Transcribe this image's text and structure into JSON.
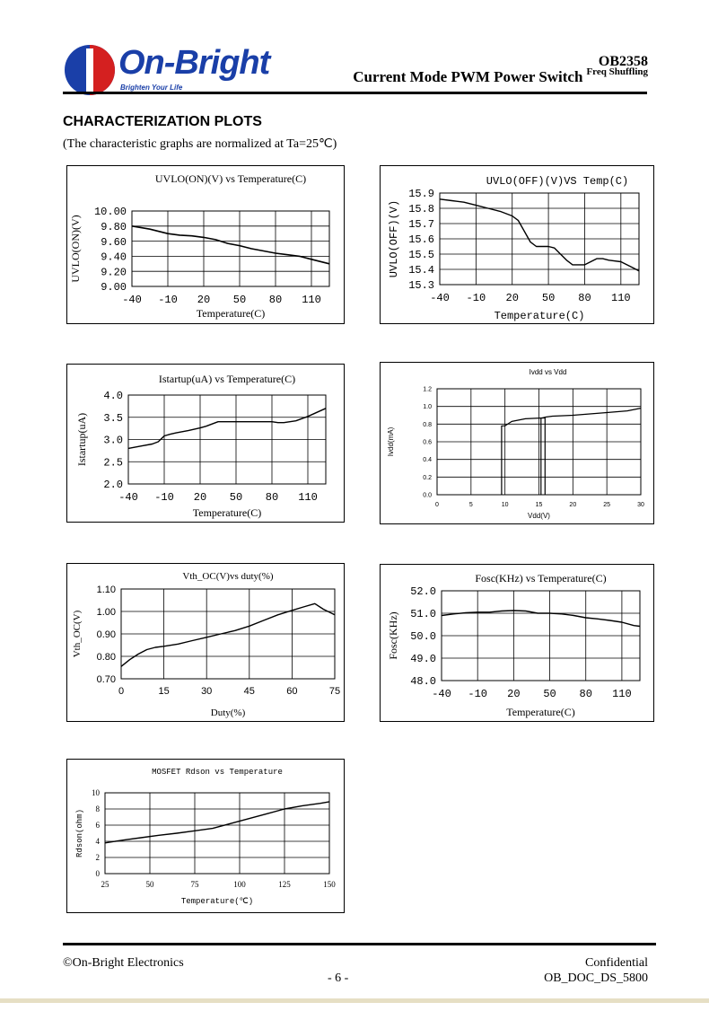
{
  "header": {
    "logo_text": "On-Bright",
    "logo_tagline": "Brighten Your Life",
    "part_number": "OB2358",
    "title": "Current Mode PWM Power Switch",
    "subtitle": "Freq Shuffling",
    "colors": {
      "brand_blue": "#1a3fa8",
      "brand_red": "#d42020"
    }
  },
  "section": {
    "title": "CHARACTERIZATION PLOTS",
    "note": "(The characteristic graphs are normalized at Ta=25℃)"
  },
  "chart_data": [
    {
      "id": "uvlo_on",
      "type": "line",
      "title": "UVLO(ON)(V) vs Temperature(C)",
      "xlabel": "Temperature(C)",
      "ylabel": "UVLO(ON)(V)",
      "xlim": [
        -40,
        125
      ],
      "ylim": [
        9.0,
        10.0
      ],
      "xticks": [
        -40,
        -10,
        20,
        50,
        80,
        110
      ],
      "yticks": [
        9.0,
        9.2,
        9.4,
        9.6,
        9.8,
        10.0
      ],
      "xtick_labels": [
        "-40",
        "-10",
        "20",
        "50",
        "80",
        "110"
      ],
      "ytick_labels": [
        "9.00",
        "9.20",
        "9.40",
        "9.60",
        "9.80",
        "10.00"
      ],
      "grid": true,
      "x": [
        -40,
        -25,
        -10,
        0,
        10,
        20,
        30,
        40,
        50,
        60,
        70,
        80,
        90,
        100,
        110,
        125
      ],
      "y": [
        9.8,
        9.76,
        9.7,
        9.68,
        9.67,
        9.65,
        9.62,
        9.57,
        9.54,
        9.5,
        9.47,
        9.44,
        9.42,
        9.4,
        9.36,
        9.3
      ]
    },
    {
      "id": "uvlo_off",
      "type": "line",
      "title": "UVLO(OFF)(V)VS Temp(C)",
      "xlabel": "Temperature(C)",
      "ylabel": "UVLO(OFF)(V)",
      "xlim": [
        -40,
        125
      ],
      "ylim": [
        15.3,
        15.9
      ],
      "xticks": [
        -40,
        -10,
        20,
        50,
        80,
        110
      ],
      "yticks": [
        15.3,
        15.4,
        15.5,
        15.6,
        15.7,
        15.8,
        15.9
      ],
      "xtick_labels": [
        "-40",
        "-10",
        "20",
        "50",
        "80",
        "110"
      ],
      "ytick_labels": [
        "15.3",
        "15.4",
        "15.5",
        "15.6",
        "15.7",
        "15.8",
        "15.9"
      ],
      "grid": true,
      "x": [
        -40,
        -30,
        -20,
        -10,
        0,
        10,
        20,
        25,
        30,
        35,
        40,
        50,
        55,
        60,
        65,
        70,
        75,
        80,
        85,
        90,
        95,
        100,
        110,
        120,
        125
      ],
      "y": [
        15.86,
        15.85,
        15.84,
        15.82,
        15.8,
        15.78,
        15.75,
        15.72,
        15.65,
        15.58,
        15.55,
        15.55,
        15.54,
        15.5,
        15.46,
        15.43,
        15.43,
        15.43,
        15.45,
        15.47,
        15.47,
        15.46,
        15.45,
        15.41,
        15.39
      ]
    },
    {
      "id": "istartup",
      "type": "line",
      "title": "Istartup(uA) vs Temperature(C)",
      "xlabel": "Temperature(C)",
      "ylabel": "Istartup(uA)",
      "xlim": [
        -40,
        125
      ],
      "ylim": [
        2.0,
        4.0
      ],
      "xticks": [
        -40,
        -10,
        20,
        50,
        80,
        110
      ],
      "yticks": [
        2.0,
        2.5,
        3.0,
        3.5,
        4.0
      ],
      "xtick_labels": [
        "-40",
        "-10",
        "20",
        "50",
        "80",
        "110"
      ],
      "ytick_labels": [
        "2.0",
        "2.5",
        "3.0",
        "3.5",
        "4.0"
      ],
      "grid": true,
      "x": [
        -40,
        -30,
        -20,
        -15,
        -10,
        -5,
        0,
        10,
        20,
        25,
        30,
        35,
        40,
        50,
        60,
        70,
        80,
        85,
        90,
        100,
        110,
        120,
        125
      ],
      "y": [
        2.8,
        2.85,
        2.9,
        2.95,
        3.08,
        3.12,
        3.15,
        3.2,
        3.26,
        3.3,
        3.35,
        3.4,
        3.4,
        3.4,
        3.4,
        3.4,
        3.4,
        3.38,
        3.38,
        3.42,
        3.52,
        3.64,
        3.7
      ]
    },
    {
      "id": "ivdd",
      "type": "line",
      "title": "Ivdd vs Vdd",
      "xlabel": "Vdd(V)",
      "ylabel": "Ivdd(mA)",
      "xlim": [
        0,
        30
      ],
      "ylim": [
        0,
        1.2
      ],
      "xticks": [
        0,
        5,
        10,
        15,
        20,
        25,
        30
      ],
      "yticks": [
        0.0,
        0.2,
        0.4,
        0.6,
        0.8,
        1.0,
        1.2
      ],
      "xtick_labels": [
        "0",
        "5",
        "10",
        "15",
        "20",
        "25",
        "30"
      ],
      "ytick_labels": [
        "0.0",
        "0.2",
        "0.4",
        "0.6",
        "0.8",
        "1.0",
        "1.2"
      ],
      "grid": true,
      "series": [
        {
          "x": [
            9.5,
            9.5,
            10,
            11,
            13,
            15.5,
            16,
            17,
            20,
            25,
            28,
            30
          ],
          "y": [
            0,
            0.78,
            0.78,
            0.83,
            0.86,
            0.87,
            0.88,
            0.89,
            0.9,
            0.93,
            0.95,
            0.98
          ]
        },
        {
          "x": [
            15.3,
            15.3,
            15.9,
            15.9
          ],
          "y": [
            0,
            0.87,
            0.87,
            0
          ]
        }
      ]
    },
    {
      "id": "vth_oc",
      "type": "line",
      "title": "Vth_OC(V)vs duty(%)",
      "xlabel": "Duty(%)",
      "ylabel": "Vth_OC(V)",
      "xlim": [
        0,
        75
      ],
      "ylim": [
        0.7,
        1.1
      ],
      "xticks": [
        0,
        15,
        30,
        45,
        60,
        75
      ],
      "yticks": [
        0.7,
        0.8,
        0.9,
        1.0,
        1.1
      ],
      "xtick_labels": [
        "0",
        "15",
        "30",
        "45",
        "60",
        "75"
      ],
      "ytick_labels": [
        "0.70",
        "0.80",
        "0.90",
        "1.00",
        "1.10"
      ],
      "grid": true,
      "x": [
        0,
        3,
        6,
        9,
        12,
        15,
        20,
        25,
        30,
        35,
        40,
        45,
        50,
        55,
        60,
        64,
        68,
        71,
        75
      ],
      "y": [
        0.755,
        0.785,
        0.81,
        0.83,
        0.84,
        0.845,
        0.855,
        0.87,
        0.885,
        0.9,
        0.915,
        0.935,
        0.96,
        0.985,
        1.005,
        1.02,
        1.035,
        1.01,
        0.985
      ]
    },
    {
      "id": "fosc",
      "type": "line",
      "title": "Fosc(KHz) vs Temperature(C)",
      "xlabel": "Temperature(C)",
      "ylabel": "Fosc(KHz)",
      "xlim": [
        -40,
        125
      ],
      "ylim": [
        48.0,
        52.0
      ],
      "xticks": [
        -40,
        -10,
        20,
        50,
        80,
        110
      ],
      "yticks": [
        48.0,
        49.0,
        50.0,
        51.0,
        52.0
      ],
      "xtick_labels": [
        "-40",
        "-10",
        "20",
        "50",
        "80",
        "110"
      ],
      "ytick_labels": [
        "48.0",
        "49.0",
        "50.0",
        "51.0",
        "52.0"
      ],
      "grid": true,
      "x": [
        -40,
        -30,
        -20,
        -10,
        0,
        10,
        20,
        30,
        40,
        50,
        60,
        70,
        80,
        90,
        100,
        110,
        120,
        125
      ],
      "y": [
        50.9,
        50.97,
        51.02,
        51.05,
        51.05,
        51.1,
        51.12,
        51.1,
        51.0,
        51.0,
        50.97,
        50.9,
        50.8,
        50.75,
        50.68,
        50.6,
        50.45,
        50.42
      ]
    },
    {
      "id": "rdson",
      "type": "line",
      "title": "MOSFET Rdson vs Temperature",
      "xlabel": "Temperature(℃)",
      "ylabel": "Rdson(ohm)",
      "xlim": [
        25,
        150
      ],
      "ylim": [
        0,
        10
      ],
      "xticks": [
        25,
        50,
        75,
        100,
        125,
        150
      ],
      "yticks": [
        0,
        2,
        4,
        6,
        8,
        10
      ],
      "xtick_labels": [
        "25",
        "50",
        "75",
        "100",
        "125",
        "150"
      ],
      "ytick_labels": [
        "0",
        "2",
        "4",
        "6",
        "8",
        "10"
      ],
      "grid": true,
      "x": [
        25,
        35,
        45,
        55,
        65,
        75,
        85,
        95,
        105,
        115,
        125,
        135,
        145,
        150
      ],
      "y": [
        3.8,
        4.15,
        4.45,
        4.75,
        5.0,
        5.3,
        5.6,
        6.2,
        6.8,
        7.4,
        8.0,
        8.4,
        8.7,
        8.9
      ]
    }
  ],
  "footer": {
    "company": "©On-Bright Electronics",
    "confidential": "Confidential",
    "page": "- 6 -",
    "doc_id": "OB_DOC_DS_5800"
  }
}
